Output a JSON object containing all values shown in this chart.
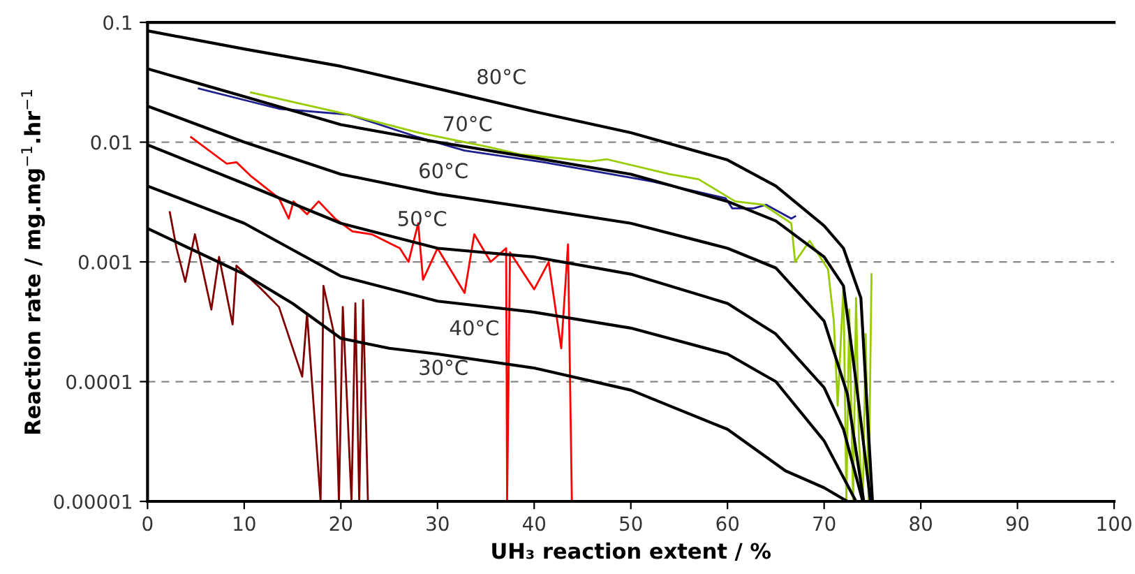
{
  "chart_data": {
    "type": "line",
    "xlabel": "UH₃ reaction extent / %",
    "ylabel": "Reaction rate / mg.mg$^{−1}$.hr$^{−1}$",
    "log": "y",
    "grid": "y",
    "marker": "none",
    "line_style": "solid",
    "xlim": [
      0,
      100
    ],
    "xticks": [
      0,
      10,
      20,
      30,
      40,
      50,
      60,
      70,
      80,
      90,
      100
    ],
    "ylim": [
      1e-05,
      0.1
    ],
    "yticks": [
      {
        "value": 1e-05,
        "label": "0.00001"
      },
      {
        "value": 0.0001,
        "label": "0.0001"
      },
      {
        "value": 0.001,
        "label": "0.001"
      },
      {
        "value": 0.01,
        "label": "0.01"
      },
      {
        "value": 0.1,
        "label": "0.1"
      }
    ],
    "series": [
      {
        "color": "#800000",
        "x": [
          2.3,
          3,
          3.9,
          4.9,
          6.6,
          7.4,
          8.8,
          9.2,
          11.7,
          13.6,
          16,
          16.5,
          17.9,
          18.2,
          19.3,
          19.8,
          20.2,
          21.1,
          21.5,
          21.9,
          22.3,
          22.8
        ],
        "values": [
          0.0026,
          0.0013,
          0.00068,
          0.0017,
          0.0004,
          0.0011,
          0.0003,
          0.00093,
          0.0006,
          0.00042,
          0.00011,
          0.00037,
          1e-05,
          0.00063,
          0.00025,
          1e-05,
          0.00042,
          1e-05,
          0.00045,
          1e-05,
          0.00048,
          1e-05
        ]
      },
      {
        "color": "#ff0000",
        "x": [
          4.5,
          8.2,
          9.2,
          10.7,
          13.6,
          14.6,
          15.1,
          16.5,
          17.7,
          19.4,
          21.2,
          23.2,
          26.1,
          27,
          28,
          28.5,
          30,
          32.8,
          33.8,
          35.5,
          37.1,
          37.2,
          37.5,
          40,
          41.5,
          42.8,
          43.5,
          43.9
        ],
        "values": [
          0.011,
          0.0066,
          0.0068,
          0.0052,
          0.0034,
          0.0023,
          0.0032,
          0.0025,
          0.0032,
          0.0023,
          0.0018,
          0.0017,
          0.0013,
          0.001,
          0.0021,
          0.00071,
          0.0013,
          0.00055,
          0.0017,
          0.001,
          0.0013,
          1e-05,
          0.0012,
          0.00059,
          0.001,
          0.00019,
          0.0014,
          1e-05
        ]
      },
      {
        "color": "#1f1f8f",
        "x": [
          5.3,
          13.6,
          20.8,
          28,
          32.8,
          41,
          52.2,
          59.8,
          60.5,
          62.7,
          64,
          66.6,
          67
        ],
        "values": [
          0.028,
          0.019,
          0.017,
          0.011,
          0.0085,
          0.0068,
          0.0047,
          0.0034,
          0.0028,
          0.0028,
          0.003,
          0.0023,
          0.0024
        ]
      },
      {
        "color": "#99cc00",
        "x": [
          10.7,
          20.8,
          28,
          35.3,
          38.6,
          45.8,
          47.5,
          54,
          57,
          60.8,
          63.7,
          66.6,
          67,
          68.5,
          70.4,
          71,
          71.4,
          72,
          72.3,
          72.6,
          73,
          73.3,
          73.6,
          74,
          74.3,
          74.6,
          74.9
        ],
        "values": [
          0.026,
          0.017,
          0.012,
          0.0091,
          0.0079,
          0.0069,
          0.0072,
          0.0054,
          0.0049,
          0.0032,
          0.003,
          0.0021,
          0.001,
          0.0015,
          0.00087,
          0.00032,
          6.3e-05,
          0.00063,
          1e-05,
          0.0004,
          1e-05,
          0.0005,
          3.2e-05,
          1e-05,
          0.00025,
          1e-05,
          0.00079
        ]
      },
      {
        "name": "80°C",
        "color": "#000000",
        "x": [
          0,
          10,
          20,
          30,
          40,
          50,
          60,
          65,
          70,
          72,
          73.8,
          75
        ],
        "values": [
          0.085,
          0.06,
          0.043,
          0.028,
          0.018,
          0.012,
          0.0071,
          0.0043,
          0.002,
          0.0013,
          0.0005,
          1e-05
        ]
      },
      {
        "name": "70°C",
        "color": "#000000",
        "x": [
          0,
          10,
          20,
          30,
          40,
          50,
          60,
          65,
          70,
          72,
          73.3,
          74.8
        ],
        "values": [
          0.041,
          0.024,
          0.014,
          0.01,
          0.0074,
          0.0054,
          0.0032,
          0.0022,
          0.0011,
          0.00063,
          0.0001,
          1e-05
        ]
      },
      {
        "name": "60°C",
        "color": "#000000",
        "x": [
          0,
          10,
          20,
          30,
          40,
          50,
          60,
          65,
          70,
          72.4,
          74.1
        ],
        "values": [
          0.02,
          0.01,
          0.0054,
          0.0037,
          0.0028,
          0.0021,
          0.0013,
          0.00089,
          0.00032,
          7.9e-05,
          1e-05
        ]
      },
      {
        "name": "50°C",
        "color": "#000000",
        "x": [
          0,
          10,
          20,
          30,
          40,
          50,
          60,
          65,
          70,
          72,
          74
        ],
        "values": [
          0.0095,
          0.0045,
          0.0021,
          0.0013,
          0.0011,
          0.00079,
          0.00045,
          0.00025,
          8.9e-05,
          4e-05,
          1e-05
        ]
      },
      {
        "name": "40°C",
        "color": "#000000",
        "x": [
          0,
          10,
          20,
          30,
          40,
          50,
          60,
          65,
          70,
          73.3
        ],
        "values": [
          0.0043,
          0.0021,
          0.00076,
          0.00047,
          0.00038,
          0.00028,
          0.00017,
          0.0001,
          3.2e-05,
          1e-05
        ]
      },
      {
        "name": "30°C",
        "color": "#000000",
        "x": [
          0,
          10,
          15,
          20,
          25,
          30,
          40,
          50,
          60,
          66,
          70,
          72.4
        ],
        "values": [
          0.0019,
          0.00079,
          0.00045,
          0.00023,
          0.00019,
          0.00017,
          0.00013,
          8.5e-05,
          4e-05,
          1.8e-05,
          1.3e-05,
          1e-05
        ]
      }
    ]
  }
}
